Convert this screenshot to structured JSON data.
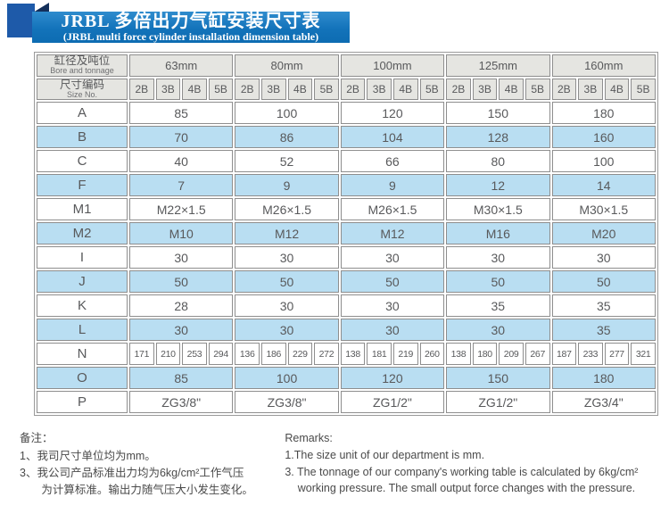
{
  "title": {
    "line1": "JRBL 多倍出力气缸安装尺寸表",
    "line2": "(JRBL multi force cylinder installation dimension table)"
  },
  "table": {
    "corner_row1": {
      "zh": "缸径及吨位",
      "en": "Bore and tonnage"
    },
    "corner_row2": {
      "zh": "尺寸编码",
      "en": "Size No."
    },
    "groups": [
      "63mm",
      "80mm",
      "100mm",
      "125mm",
      "160mm"
    ],
    "subcols": [
      "2B",
      "3B",
      "4B",
      "5B"
    ],
    "rows": [
      {
        "label": "A",
        "type": "merged",
        "values": [
          "85",
          "100",
          "120",
          "150",
          "180"
        ]
      },
      {
        "label": "B",
        "type": "merged",
        "values": [
          "70",
          "86",
          "104",
          "128",
          "160"
        ]
      },
      {
        "label": "C",
        "type": "merged",
        "values": [
          "40",
          "52",
          "66",
          "80",
          "100"
        ]
      },
      {
        "label": "F",
        "type": "merged",
        "values": [
          "7",
          "9",
          "9",
          "12",
          "14"
        ]
      },
      {
        "label": "M1",
        "type": "merged",
        "values": [
          "M22×1.5",
          "M26×1.5",
          "M26×1.5",
          "M30×1.5",
          "M30×1.5"
        ]
      },
      {
        "label": "M2",
        "type": "merged",
        "values": [
          "M10",
          "M12",
          "M12",
          "M16",
          "M20"
        ]
      },
      {
        "label": "I",
        "type": "merged",
        "values": [
          "30",
          "30",
          "30",
          "30",
          "30"
        ]
      },
      {
        "label": "J",
        "type": "merged",
        "values": [
          "50",
          "50",
          "50",
          "50",
          "50"
        ]
      },
      {
        "label": "K",
        "type": "merged",
        "values": [
          "28",
          "30",
          "30",
          "35",
          "35"
        ]
      },
      {
        "label": "L",
        "type": "merged",
        "values": [
          "30",
          "30",
          "30",
          "30",
          "35"
        ]
      },
      {
        "label": "N",
        "type": "percol",
        "values": [
          "171",
          "210",
          "253",
          "294",
          "136",
          "186",
          "229",
          "272",
          "138",
          "181",
          "219",
          "260",
          "138",
          "180",
          "209",
          "267",
          "187",
          "233",
          "277",
          "321"
        ]
      },
      {
        "label": "O",
        "type": "merged",
        "values": [
          "85",
          "100",
          "120",
          "150",
          "180"
        ]
      },
      {
        "label": "P",
        "type": "merged",
        "values": [
          "ZG3/8\"",
          "ZG3/8\"",
          "ZG1/2\"",
          "ZG1/2\"",
          "ZG3/4\""
        ]
      }
    ]
  },
  "notes_left": {
    "heading": "备注：",
    "line1": "1、我司尺寸单位均为mm。",
    "line2": "3、我公司产品标准出力均为6kg/cm²工作气压",
    "line2b": "为计算标准。输出力随气压大小发生变化。"
  },
  "notes_right": {
    "heading": "Remarks:",
    "line1": "1.The size unit of our department is mm.",
    "line2": "3. The tonnage of our company's working table is calculated by 6kg/cm²",
    "line2b": "working pressure. The small output force changes with the pressure."
  },
  "colors": {
    "banner_blue": "#1373ba",
    "ribbon_square_blue": "#1e5aa9",
    "ribbon_fold_navy": "#132f5a",
    "header_grey": "#e5e5e1",
    "stripe_blue": "#b9def2",
    "border_grey": "#8e8e8e",
    "text_grey": "#58595b"
  }
}
